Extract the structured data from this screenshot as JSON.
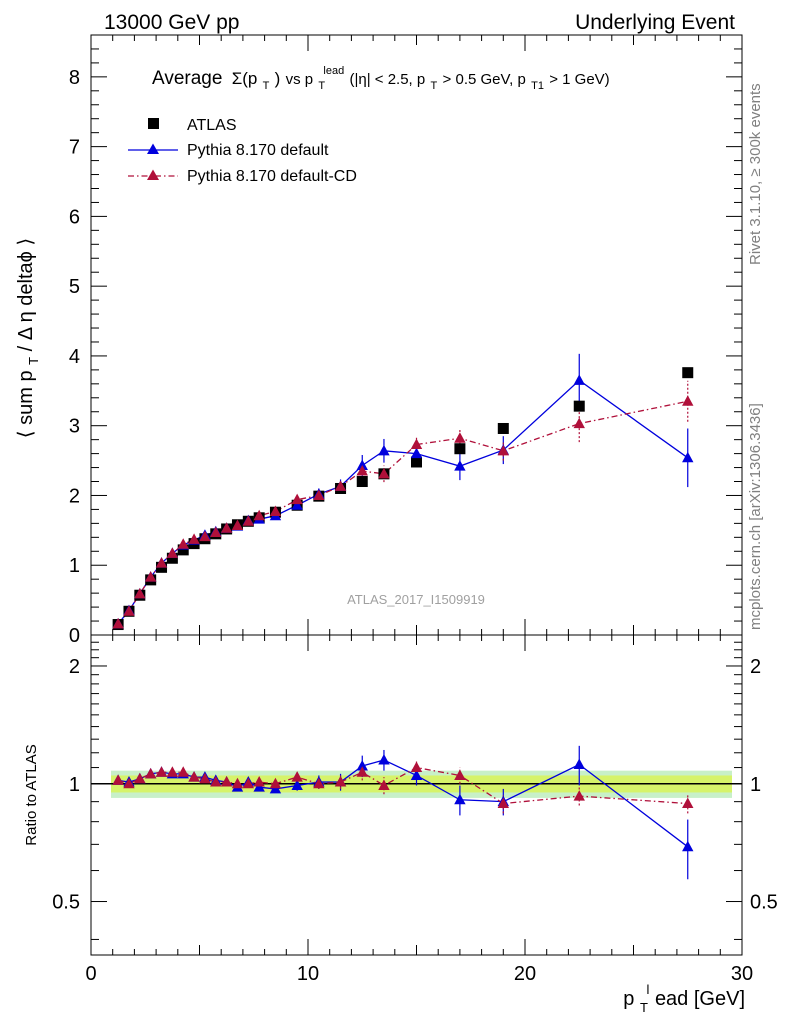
{
  "header": {
    "left": "13000 GeV pp",
    "right": "Underlying Event"
  },
  "side_labels": {
    "rivet": "Rivet 3.1.10, ≥ 300k events",
    "mcplots": "mcplots.cern.ch [arXiv:1306.3436]"
  },
  "watermark": "ATLAS_2017_I1509919",
  "colors": {
    "data": "#000000",
    "default": "#0000dd",
    "cd": "#b0103a",
    "band_inner": "#d6f36a",
    "band_outer": "#c8f0c8"
  },
  "chart_data": [
    {
      "type": "scatter",
      "title_parts": {
        "main": "Average",
        "sigma": "Σ(p",
        "sigma_sub": "T",
        "sigma_close": ")",
        "vs": " vs p",
        "vs_sub": "T",
        "vs_sup": "lead",
        "cuts_a": " (|η| < 2.5, p",
        "cuts_sub1": "T",
        "cuts_b": " > 0.5 GeV, p",
        "cuts_sub2": "T1",
        "cuts_c": " > 1 GeV)"
      },
      "ylabel": {
        "a": "⟨ sum p",
        "sub": "T",
        "b": " / Δ η deltaϕ ⟩"
      },
      "xlim": [
        0,
        30
      ],
      "ylim": [
        0,
        8.6
      ],
      "yticks": [
        0,
        1,
        2,
        3,
        4,
        5,
        6,
        7,
        8
      ],
      "xticks": [
        0,
        10,
        20,
        30
      ],
      "legend": [
        "ATLAS",
        "Pythia 8.170 default",
        "Pythia 8.170 default-CD"
      ],
      "legend_position": "top-left",
      "x": [
        1.25,
        1.75,
        2.25,
        2.75,
        3.25,
        3.75,
        4.25,
        4.75,
        5.25,
        5.75,
        6.25,
        6.75,
        7.25,
        7.75,
        8.5,
        9.5,
        10.5,
        11.5,
        12.5,
        13.5,
        15.0,
        17.0,
        19.0,
        22.5,
        27.5
      ],
      "series": [
        {
          "name": "ATLAS",
          "values": [
            0.15,
            0.34,
            0.57,
            0.79,
            0.97,
            1.1,
            1.22,
            1.31,
            1.38,
            1.45,
            1.52,
            1.58,
            1.63,
            1.68,
            1.76,
            1.86,
            1.99,
            2.1,
            2.2,
            2.31,
            2.48,
            2.67,
            2.96,
            3.28,
            3.76
          ]
        },
        {
          "name": "Pythia 8.170 default",
          "values": [
            0.16,
            0.35,
            0.59,
            0.83,
            1.03,
            1.17,
            1.29,
            1.36,
            1.43,
            1.48,
            1.53,
            1.56,
            1.64,
            1.66,
            1.71,
            1.86,
            2.02,
            2.13,
            2.43,
            2.64,
            2.6,
            2.42,
            2.65,
            3.65,
            2.54
          ],
          "err": [
            0.01,
            0.01,
            0.02,
            0.02,
            0.03,
            0.03,
            0.03,
            0.04,
            0.04,
            0.04,
            0.05,
            0.05,
            0.05,
            0.05,
            0.05,
            0.06,
            0.08,
            0.1,
            0.15,
            0.17,
            0.14,
            0.2,
            0.2,
            0.38,
            0.42
          ]
        },
        {
          "name": "Pythia 8.170 default-CD",
          "values": [
            0.16,
            0.34,
            0.59,
            0.83,
            1.03,
            1.17,
            1.3,
            1.37,
            1.41,
            1.47,
            1.53,
            1.57,
            1.63,
            1.71,
            1.77,
            1.94,
            2.0,
            2.13,
            2.35,
            2.31,
            2.73,
            2.82,
            2.64,
            3.03,
            3.35
          ]
        }
      ]
    },
    {
      "type": "scatter",
      "ylabel": "Ratio to ATLAS",
      "xlabel": {
        "a": "p",
        "sub": "T",
        "sup": "l",
        "b": "ead [GeV]"
      },
      "xlim": [
        0,
        30
      ],
      "ylim": [
        0.365,
        2.4
      ],
      "ytick_labels": [
        "0.5",
        "1",
        "2"
      ],
      "yticks": [
        0.5,
        1,
        2
      ],
      "xticks": [
        0,
        10,
        20,
        30
      ],
      "reference": 1,
      "band_halfwidth": 0.05,
      "series": [
        {
          "name": "Pythia 8.170 default",
          "values": [
            1.02,
            1.01,
            1.03,
            1.06,
            1.07,
            1.06,
            1.06,
            1.04,
            1.04,
            1.02,
            1.01,
            0.98,
            1.01,
            0.98,
            0.97,
            0.99,
            1.01,
            1.01,
            1.11,
            1.15,
            1.05,
            0.91,
            0.9,
            1.12,
            0.69
          ],
          "err": [
            0.02,
            0.02,
            0.02,
            0.02,
            0.02,
            0.02,
            0.02,
            0.02,
            0.02,
            0.02,
            0.02,
            0.02,
            0.02,
            0.02,
            0.02,
            0.03,
            0.04,
            0.05,
            0.07,
            0.07,
            0.06,
            0.08,
            0.07,
            0.13,
            0.12
          ]
        },
        {
          "name": "Pythia 8.170 default-CD",
          "values": [
            1.02,
            1.0,
            1.03,
            1.06,
            1.07,
            1.07,
            1.07,
            1.04,
            1.03,
            1.01,
            1.01,
            1.0,
            1.0,
            1.01,
            1.0,
            1.04,
            1.0,
            1.01,
            1.07,
            0.99,
            1.1,
            1.05,
            0.89,
            0.93,
            0.89
          ],
          "err": [
            0.02,
            0.02,
            0.02,
            0.02,
            0.02,
            0.02,
            0.02,
            0.02,
            0.02,
            0.02,
            0.02,
            0.02,
            0.02,
            0.02,
            0.02,
            0.03,
            0.03,
            0.04,
            0.05,
            0.05,
            0.05,
            0.05,
            0.05,
            0.05,
            0.05
          ]
        }
      ]
    }
  ]
}
